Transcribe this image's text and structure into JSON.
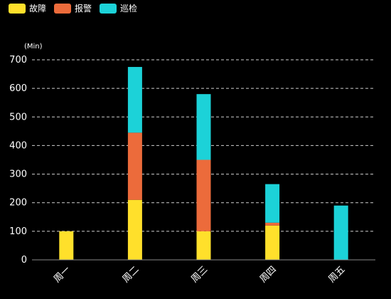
{
  "chart_data": {
    "type": "bar",
    "stacked": true,
    "categories": [
      "周一",
      "周二",
      "周三",
      "周四",
      "周五"
    ],
    "series": [
      {
        "name": "故障",
        "color": "#FFE02B",
        "values": [
          100,
          210,
          100,
          120,
          0
        ]
      },
      {
        "name": "报警",
        "color": "#EC6B3B",
        "values": [
          0,
          235,
          250,
          10,
          0
        ]
      },
      {
        "name": "巡检",
        "color": "#1CD2D8",
        "values": [
          0,
          230,
          230,
          135,
          190
        ]
      }
    ],
    "y_unit": "(Min)",
    "ylim": [
      0,
      700
    ],
    "yticks": [
      0,
      100,
      200,
      300,
      400,
      500,
      600,
      700
    ],
    "grid": true,
    "legend_position": "top-left",
    "x_label_rotation": -45
  }
}
